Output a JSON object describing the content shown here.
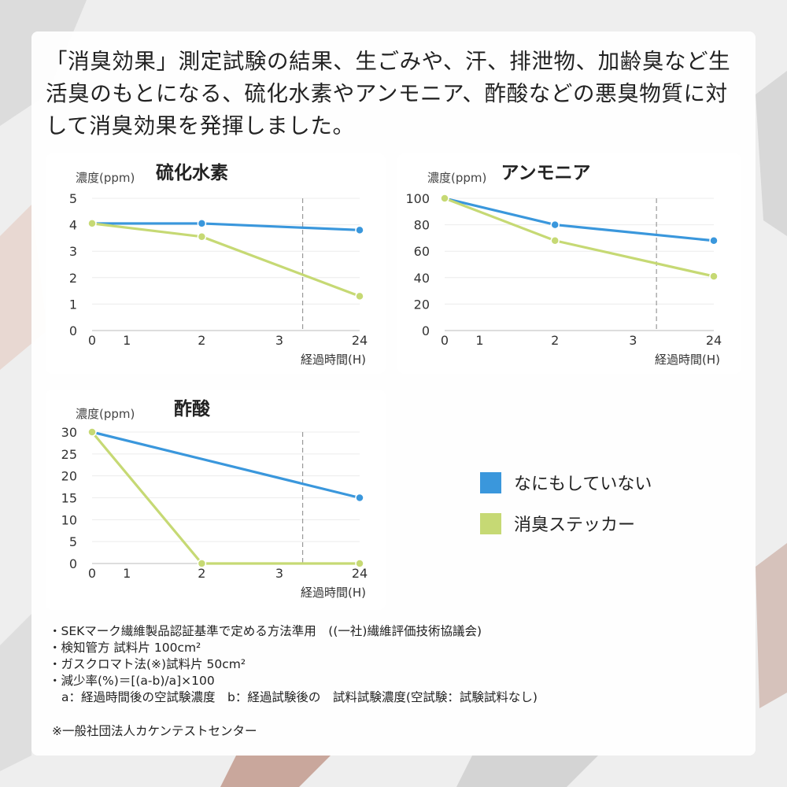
{
  "intro": "「消臭効果」測定試験の結果、生ごみや、汗、排泄物、加齢臭など生活臭のもとになる、硫化水素やアンモニア、酢酸などの悪臭物質に対して消臭効果を発揮しました。",
  "chart_data": [
    {
      "type": "line",
      "title": "硫化水素",
      "y_label": "濃度(ppm)",
      "x_label": "経過時間(H)",
      "xlim": [
        0,
        24
      ],
      "xticks": [
        0,
        1,
        2,
        3,
        24
      ],
      "ylim": [
        0,
        5
      ],
      "yticks": [
        0,
        1,
        2,
        3,
        4,
        5
      ],
      "grid": true,
      "series": [
        {
          "name": "なにもしていない",
          "color": "#3a97dc",
          "x": [
            0,
            2,
            24
          ],
          "values": [
            4.05,
            4.05,
            3.8
          ]
        },
        {
          "name": "消臭ステッカー",
          "color": "#c6d974",
          "x": [
            0,
            2,
            24
          ],
          "values": [
            4.05,
            3.55,
            1.3
          ]
        }
      ]
    },
    {
      "type": "line",
      "title": "アンモニア",
      "y_label": "濃度(ppm)",
      "x_label": "経過時間(H)",
      "xlim": [
        0,
        24
      ],
      "xticks": [
        0,
        1,
        2,
        3,
        24
      ],
      "ylim": [
        0,
        100
      ],
      "yticks": [
        0,
        20,
        40,
        60,
        80,
        100
      ],
      "grid": true,
      "series": [
        {
          "color": "#3a97dc",
          "x": [
            0,
            2,
            24
          ],
          "values": [
            100,
            80,
            68
          ]
        },
        {
          "color": "#c6d974",
          "x": [
            0,
            2,
            24
          ],
          "values": [
            100,
            68,
            41
          ]
        }
      ]
    },
    {
      "type": "line",
      "title": "酢酸",
      "y_label": "濃度(ppm)",
      "x_label": "経過時間(H)",
      "xlim": [
        0,
        24
      ],
      "xticks": [
        0,
        1,
        2,
        3,
        24
      ],
      "ylim": [
        0,
        30
      ],
      "yticks": [
        0,
        5,
        10,
        15,
        20,
        25,
        30
      ],
      "grid": true,
      "series": [
        {
          "color": "#3a97dc",
          "x": [
            0,
            24
          ],
          "values": [
            30,
            15
          ]
        },
        {
          "color": "#c6d974",
          "x": [
            0,
            2,
            24
          ],
          "values": [
            30,
            0,
            0
          ]
        }
      ]
    }
  ],
  "notes": [
    "・SEKマーク繊維製品認証基準で定める方法準用　((一社)繊維評価技術協議会)",
    "・検知管方 試料片 100cm²",
    "・ガスクロマト法(※)試料片 50cm²",
    "・減少率(%)＝[(a-b)/a]×100",
    "a：経過時間後の空試験濃度　b：経過試験後の　試料試験濃度(空試験：試験試料なし)"
  ],
  "footnote": "※一般社団法人カケンテストセンター"
}
